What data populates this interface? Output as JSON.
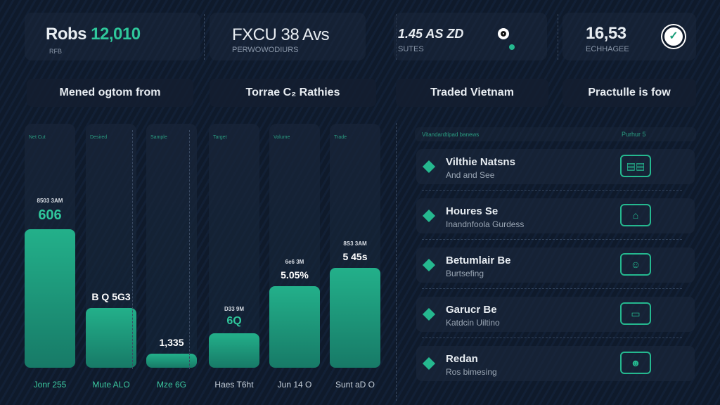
{
  "stats": [
    {
      "prefix": "Robs",
      "value": "12,010",
      "label": "Rfb"
    },
    {
      "value": "FXCU 38 Avs",
      "label": "PERWOWODIURS"
    },
    {
      "value": "1.45 AS ZD",
      "label": "SUTES"
    },
    {
      "value": "16,53",
      "label": "ECHHAGEE"
    }
  ],
  "pills": [
    "Mened ogtom from",
    "Torrae C₂ Rathies",
    "Traded Vietnam",
    "Practulle is fow"
  ],
  "chart_data": {
    "type": "bar",
    "categories": [
      "Jonr 255",
      "Mute ALO",
      "Mze 6G",
      "Haes T6ht",
      "Jun 14 O",
      "Sunt aD O"
    ],
    "values": [
      100,
      43,
      10,
      25,
      59,
      72
    ],
    "series_tags": [
      "Net Cut",
      "Desired",
      "Sample",
      "Target",
      "Volume",
      "Trade"
    ],
    "value_labels": [
      "606",
      "B Q 5G3",
      "1,335",
      "6Q",
      "5.05%",
      "5 45s"
    ],
    "sub_labels": [
      "8503 3AM",
      "",
      "",
      "D33 9M",
      "6e6 3M",
      "8S3 3AM"
    ],
    "accent": "#23b08a"
  },
  "list": {
    "header_left": "Vitandardtipad banews",
    "header_right": "Purhur 5",
    "items": [
      {
        "title": "Vilthie Natsns",
        "subtitle": "And and See",
        "icon": "book-icon"
      },
      {
        "title": "Houres Se",
        "subtitle": "Inandnfoola Gurdess",
        "icon": "building-icon"
      },
      {
        "title": "Betumlair Be",
        "subtitle": "Burtsefing",
        "icon": "badge-icon"
      },
      {
        "title": "Garucr Be",
        "subtitle": "Katdcin Uiltino",
        "icon": "monitor-icon"
      },
      {
        "title": "Redan",
        "subtitle": "Ros bimesing",
        "icon": "sign-icon"
      }
    ]
  }
}
